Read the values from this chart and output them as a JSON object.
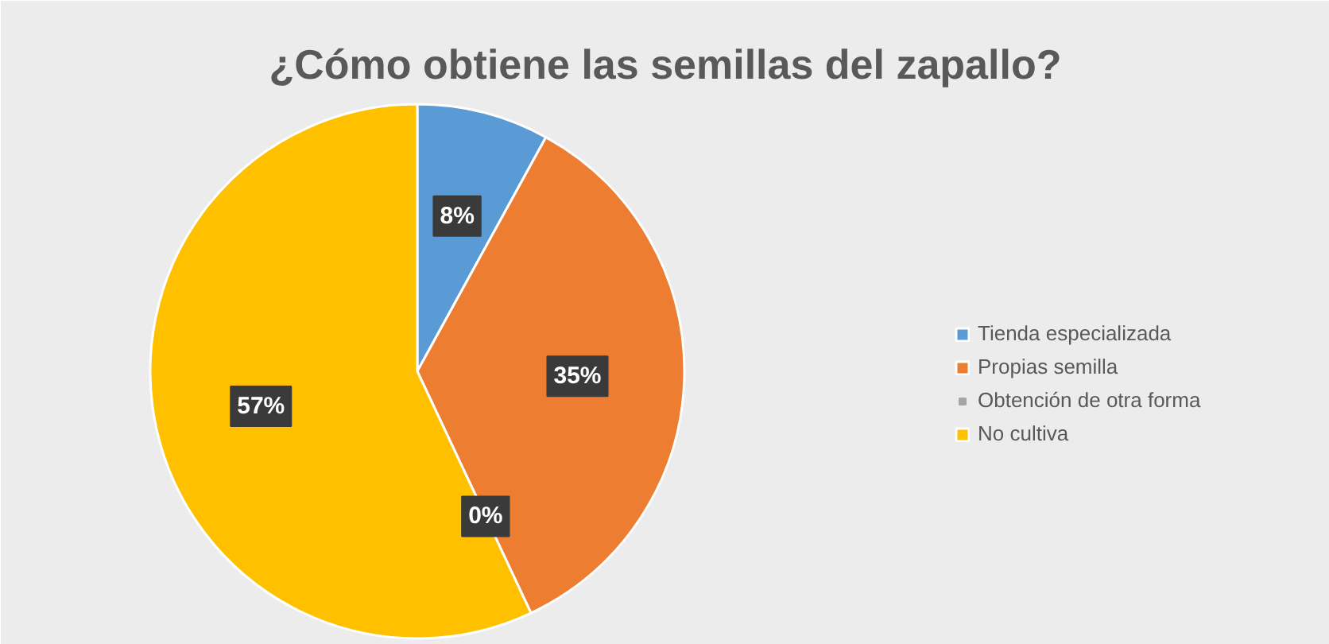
{
  "chart_data": {
    "type": "pie",
    "title": "¿Cómo obtiene las semillas del zapallo?",
    "categories": [
      "Tienda especializada",
      "Propias semilla",
      "Obtención de otra forma",
      "No cultiva"
    ],
    "values": [
      8,
      35,
      0,
      57
    ],
    "colors": [
      "#5b9bd5",
      "#ed7d31",
      "#a5a5a5",
      "#ffc000"
    ],
    "value_labels": [
      "8%",
      "35%",
      "0%",
      "57%"
    ],
    "legend": "right"
  }
}
